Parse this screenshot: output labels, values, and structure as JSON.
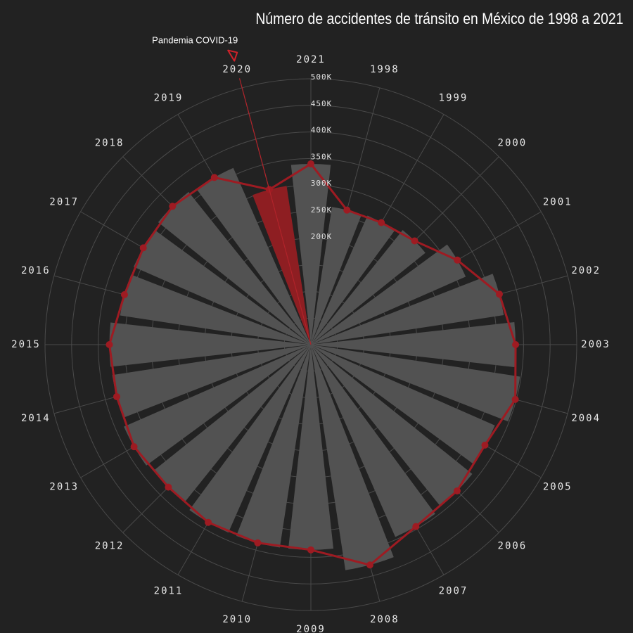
{
  "chart_data": {
    "type": "polar-bar-line",
    "title": "Número de accidentes de tránsito en México de 1998 a 2021",
    "categories": [
      "1998",
      "1999",
      "2000",
      "2001",
      "2002",
      "2003",
      "2004",
      "2005",
      "2006",
      "2007",
      "2008",
      "2009",
      "2010",
      "2011",
      "2012",
      "2013",
      "2014",
      "2015",
      "2016",
      "2017",
      "2018",
      "2019",
      "2020",
      "2021"
    ],
    "values": [
      262000,
      265000,
      276000,
      318000,
      367000,
      385000,
      398000,
      378000,
      389000,
      395000,
      429000,
      386000,
      386000,
      386000,
      379000,
      384000,
      378000,
      379000,
      363000,
      364000,
      368000,
      363000,
      302000,
      340000
    ],
    "highlight": {
      "category": "2020",
      "color": "#8e1e22"
    },
    "rlim": [
      0,
      500000
    ],
    "rticks": [
      {
        "value": 200000,
        "label": "200K"
      },
      {
        "value": 250000,
        "label": "250K"
      },
      {
        "value": 300000,
        "label": "300K"
      },
      {
        "value": 350000,
        "label": "350K"
      },
      {
        "value": 400000,
        "label": "400K"
      },
      {
        "value": 450000,
        "label": "450K"
      },
      {
        "value": 500000,
        "label": "500K"
      }
    ],
    "bar_color": "#525252",
    "line_color": "#9e1b22",
    "annotation": {
      "text": "Pandemia COVID-19",
      "category": "2020"
    }
  }
}
